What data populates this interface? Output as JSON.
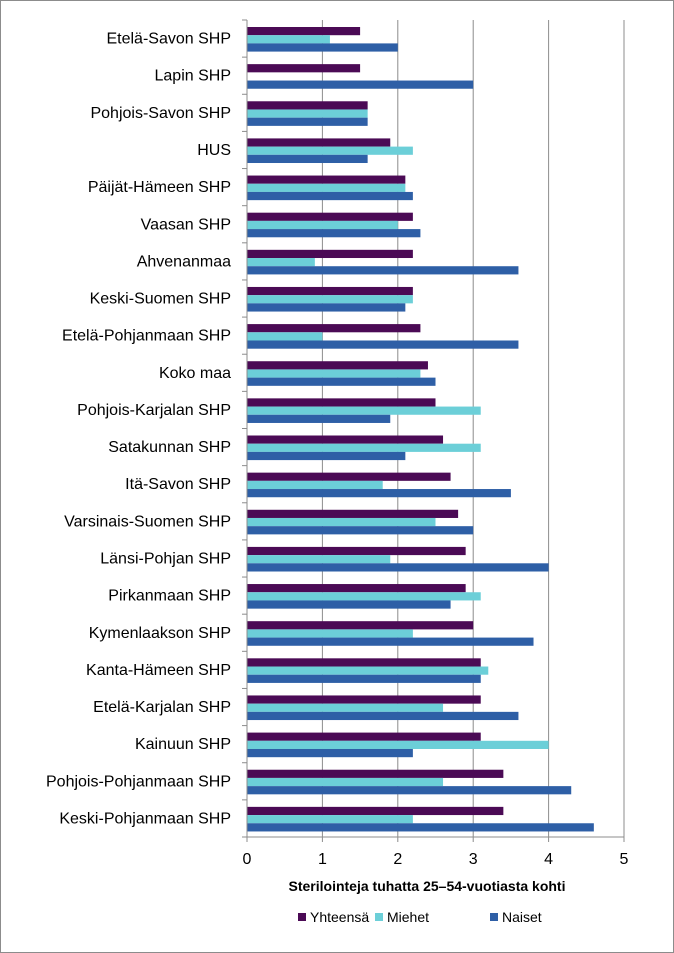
{
  "chart_data": {
    "type": "bar",
    "orientation": "horizontal",
    "xlabel": "Sterilointeja  tuhatta 25–54-vuotiasta kohti",
    "xlim": [
      0,
      5
    ],
    "xticks": [
      0,
      1,
      2,
      3,
      4,
      5
    ],
    "grid": true,
    "legend_position": "bottom",
    "categories": [
      "Etelä-Savon SHP",
      "Lapin SHP",
      "Pohjois-Savon SHP",
      "HUS",
      "Päijät-Hämeen SHP",
      "Vaasan SHP",
      "Ahvenanmaa",
      "Keski-Suomen SHP",
      "Etelä-Pohjanmaan SHP",
      "Koko maa",
      "Pohjois-Karjalan SHP",
      "Satakunnan SHP",
      "Itä-Savon SHP",
      "Varsinais-Suomen SHP",
      "Länsi-Pohjan SHP",
      "Pirkanmaan SHP",
      "Kymenlaakson SHP",
      "Kanta-Hämeen SHP",
      "Etelä-Karjalan SHP",
      "Kainuun SHP",
      "Pohjois-Pohjanmaan SHP",
      "Keski-Pohjanmaan SHP"
    ],
    "series": [
      {
        "name": "Yhteensä",
        "color": "#4B0A55",
        "values": [
          1.5,
          1.5,
          1.6,
          1.9,
          2.1,
          2.2,
          2.2,
          2.2,
          2.3,
          2.4,
          2.5,
          2.6,
          2.7,
          2.8,
          2.9,
          2.9,
          3.0,
          3.1,
          3.1,
          3.1,
          3.4,
          3.4
        ]
      },
      {
        "name": "Miehet",
        "color": "#6CCFD8",
        "values": [
          1.1,
          0,
          1.6,
          2.2,
          2.1,
          2.0,
          0.9,
          2.2,
          1.0,
          2.3,
          3.1,
          3.1,
          1.8,
          2.5,
          1.9,
          3.1,
          2.2,
          3.2,
          2.6,
          4.0,
          2.6,
          2.2
        ]
      },
      {
        "name": "Naiset",
        "color": "#2E5FA6",
        "values": [
          2.0,
          3.0,
          1.6,
          1.6,
          2.2,
          2.3,
          3.6,
          2.1,
          3.6,
          2.5,
          1.9,
          2.1,
          3.5,
          3.0,
          4.0,
          2.7,
          3.8,
          3.1,
          3.6,
          2.2,
          4.3,
          4.6
        ]
      }
    ]
  }
}
